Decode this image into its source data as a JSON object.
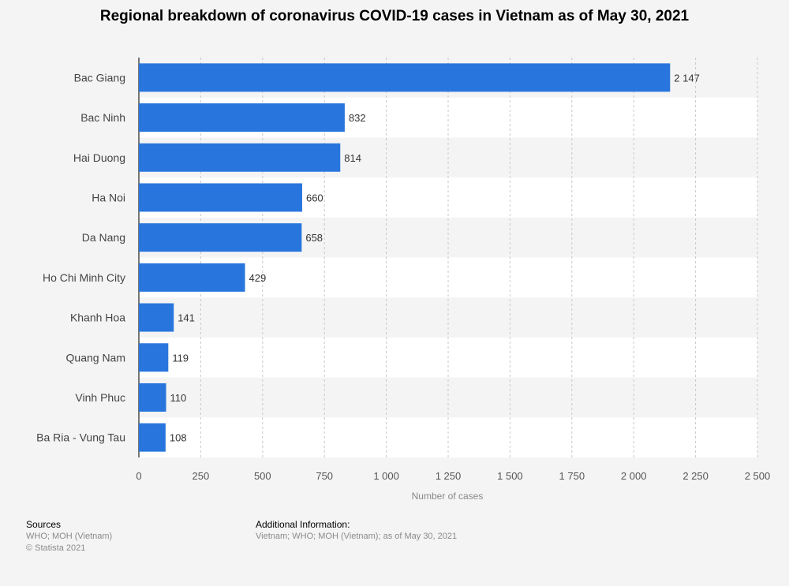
{
  "chart_data": {
    "type": "bar",
    "orientation": "horizontal",
    "title": "Regional breakdown of coronavirus COVID-19 cases in Vietnam as of May 30, 2021",
    "categories": [
      "Bac Giang",
      "Bac Ninh",
      "Hai Duong",
      "Ha Noi",
      "Da Nang",
      "Ho Chi Minh City",
      "Khanh Hoa",
      "Quang Nam",
      "Vinh Phuc",
      "Ba Ria - Vung Tau"
    ],
    "values": [
      2147,
      832,
      814,
      660,
      658,
      429,
      141,
      119,
      110,
      108
    ],
    "value_labels": [
      "2 147",
      "832",
      "814",
      "660",
      "658",
      "429",
      "141",
      "119",
      "110",
      "108"
    ],
    "xlabel": "Number of cases",
    "ylabel": "",
    "xlim": [
      0,
      2500
    ],
    "ticks": [
      0,
      250,
      500,
      750,
      1000,
      1250,
      1500,
      1750,
      2000,
      2250,
      2500
    ],
    "tick_labels": [
      "0",
      "250",
      "500",
      "750",
      "1 000",
      "1 250",
      "1 500",
      "1 750",
      "2 000",
      "2 250",
      "2 500"
    ],
    "grid": true,
    "bar_color": "#2876dd"
  },
  "footer": {
    "sources_heading": "Sources",
    "sources_line1": "WHO; MOH (Vietnam)",
    "sources_line2": "© Statista 2021",
    "additional_heading": "Additional Information:",
    "additional_text": "Vietnam; WHO; MOH (Vietnam); as of May 30, 2021"
  }
}
